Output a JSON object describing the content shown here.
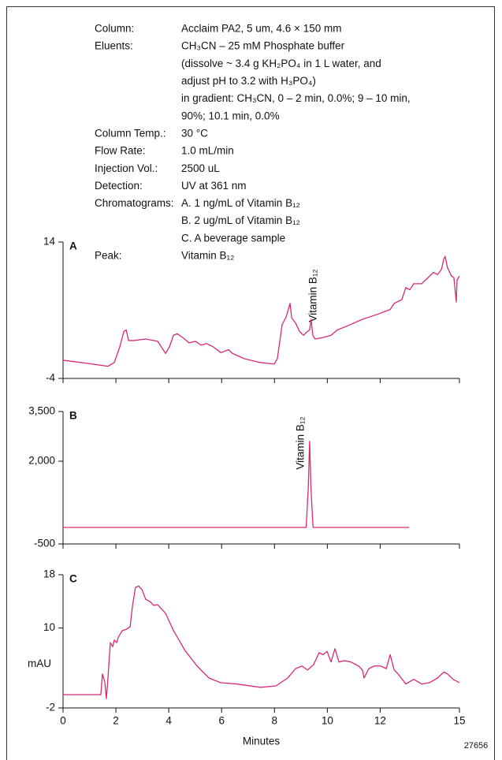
{
  "chart_data": [
    {
      "type": "line",
      "panel_label": "A",
      "conditions": [
        {
          "label": "Column:",
          "lines": [
            "Acclaim PA2, 5 um, 4.6 × 150 mm"
          ]
        },
        {
          "label": "Eluents:",
          "lines": [
            "CH₃CN – 25 mM Phosphate buffer",
            "(dissolve ~ 3.4 g KH₂PO₄ in 1 L water, and",
            "adjust pH to 3.2 with H₃PO₄)",
            "in gradient: CH₃CN, 0 – 2 min, 0.0%; 9 – 10 min,",
            "90%; 10.1 min, 0.0%"
          ]
        },
        {
          "label": "Column Temp.:",
          "lines": [
            "30 °C"
          ]
        },
        {
          "label": "Flow Rate:",
          "lines": [
            "1.0 mL/min"
          ]
        },
        {
          "label": "Injection Vol.:",
          "lines": [
            "2500 uL"
          ]
        },
        {
          "label": "Detection:",
          "lines": [
            "UV at 361 nm"
          ]
        },
        {
          "label": "Chromatograms:",
          "lines": [
            "A. 1 ng/mL of Vitamin B₁₂",
            "B. 2 ug/mL of Vitamin B₁₂",
            "C. A beverage sample"
          ]
        },
        {
          "label": "Peak:",
          "lines": [
            "Vitamin B₁₂"
          ]
        }
      ],
      "annotation": "Vitamin B₁₂",
      "xlim": [
        0,
        15
      ],
      "xticks": [
        0,
        2,
        4,
        6,
        8,
        10,
        12,
        15
      ],
      "ylim": [
        -4,
        14
      ],
      "yticks": [
        -4,
        14
      ],
      "x": [
        0,
        0.89,
        1.7,
        1.94,
        2.15,
        2.3,
        2.39,
        2.48,
        2.68,
        3.13,
        3.58,
        3.88,
        4.03,
        4.18,
        4.32,
        4.53,
        4.77,
        5.01,
        5.22,
        5.43,
        5.67,
        5.97,
        6.26,
        6.41,
        6.86,
        7.46,
        7.99,
        8.11,
        8.29,
        8.44,
        8.59,
        8.65,
        8.8,
        8.95,
        9.1,
        9.25,
        9.33,
        9.39,
        9.45,
        9.54,
        9.84,
        10.14,
        10.38,
        10.74,
        11.33,
        11.93,
        12.38,
        12.53,
        12.82,
        12.97,
        13.12,
        13.27,
        13.57,
        13.87,
        14.02,
        14.17,
        14.32,
        14.41,
        14.46,
        14.55,
        14.7,
        14.79,
        14.88,
        14.91,
        15.0
      ],
      "series": [
        {
          "color": "#d62a74",
          "values": [
            -1.6,
            -2.0,
            -2.4,
            -1.9,
            0.2,
            2.2,
            2.4,
            1.0,
            1.0,
            1.2,
            0.9,
            -0.7,
            0.2,
            1.7,
            1.9,
            1.4,
            0.7,
            0.9,
            0.4,
            0.6,
            0.2,
            -0.6,
            -0.2,
            -0.7,
            -1.4,
            -1.9,
            -2.1,
            -1.4,
            3.1,
            4.1,
            5.9,
            4.0,
            3.3,
            2.2,
            1.7,
            2.2,
            2.4,
            3.8,
            1.7,
            1.2,
            1.4,
            1.7,
            2.4,
            2.9,
            3.8,
            4.5,
            5.1,
            5.9,
            6.4,
            8.0,
            7.7,
            8.5,
            8.5,
            9.5,
            10.0,
            9.7,
            10.4,
            11.8,
            12.1,
            10.6,
            9.5,
            9.3,
            6.1,
            9.0,
            9.5
          ]
        }
      ]
    },
    {
      "type": "line",
      "panel_label": "B",
      "annotation": "Vitamin B₁₂",
      "xlim": [
        0,
        15
      ],
      "xticks": [
        0,
        2,
        4,
        6,
        8,
        10,
        12,
        15
      ],
      "ylim": [
        -500,
        3500
      ],
      "yticks": [
        -500,
        {
          "value": 2000,
          "label": "2,000"
        },
        {
          "value": 3500,
          "label": "3,500"
        }
      ],
      "x": [
        0,
        9.2,
        9.28,
        9.33,
        9.38,
        9.46,
        13.1
      ],
      "series": [
        {
          "color": "#d62a74",
          "values": [
            0,
            0,
            1200,
            2600,
            1200,
            0,
            0
          ]
        }
      ]
    },
    {
      "type": "line",
      "panel_label": "C",
      "ylabel": "mAU",
      "xlabel": "Minutes",
      "footnote": "27656",
      "xlim": [
        0,
        15
      ],
      "xticks": [
        0,
        2,
        4,
        6,
        8,
        10,
        12,
        15
      ],
      "ylim": [
        -2,
        18
      ],
      "yticks": [
        -2,
        10,
        18
      ],
      "x": [
        0,
        1.43,
        1.49,
        1.58,
        1.64,
        1.7,
        1.79,
        1.88,
        1.94,
        2.03,
        2.09,
        2.24,
        2.39,
        2.54,
        2.62,
        2.74,
        2.86,
        2.98,
        3.13,
        3.28,
        3.43,
        3.58,
        3.88,
        4.18,
        4.62,
        5.07,
        5.52,
        5.96,
        6.56,
        7.46,
        8.05,
        8.5,
        8.8,
        9.04,
        9.25,
        9.48,
        9.69,
        9.84,
        9.99,
        10.14,
        10.29,
        10.44,
        10.65,
        10.89,
        11.18,
        11.33,
        11.39,
        11.57,
        11.78,
        12.02,
        12.23,
        12.38,
        12.53,
        12.68,
        12.97,
        13.27,
        13.57,
        13.87,
        14.17,
        14.41,
        14.55,
        14.76,
        15.0
      ],
      "series": [
        {
          "color": "#d62a74",
          "values": [
            0.0,
            0.0,
            3.1,
            1.9,
            -0.6,
            2.5,
            7.8,
            7.2,
            8.2,
            7.8,
            8.6,
            9.6,
            9.8,
            10.2,
            13.1,
            16.1,
            16.3,
            15.8,
            14.3,
            14.0,
            13.4,
            13.5,
            12.2,
            9.6,
            6.6,
            4.3,
            2.5,
            1.8,
            1.6,
            1.1,
            1.3,
            2.5,
            3.9,
            4.3,
            3.7,
            4.5,
            6.3,
            6.0,
            6.5,
            4.9,
            6.9,
            4.9,
            5.1,
            4.9,
            4.3,
            3.7,
            2.5,
            3.9,
            4.3,
            4.3,
            3.9,
            6.0,
            3.7,
            3.1,
            1.6,
            2.3,
            1.6,
            1.8,
            2.5,
            3.4,
            3.1,
            2.3,
            1.8
          ]
        }
      ]
    }
  ]
}
